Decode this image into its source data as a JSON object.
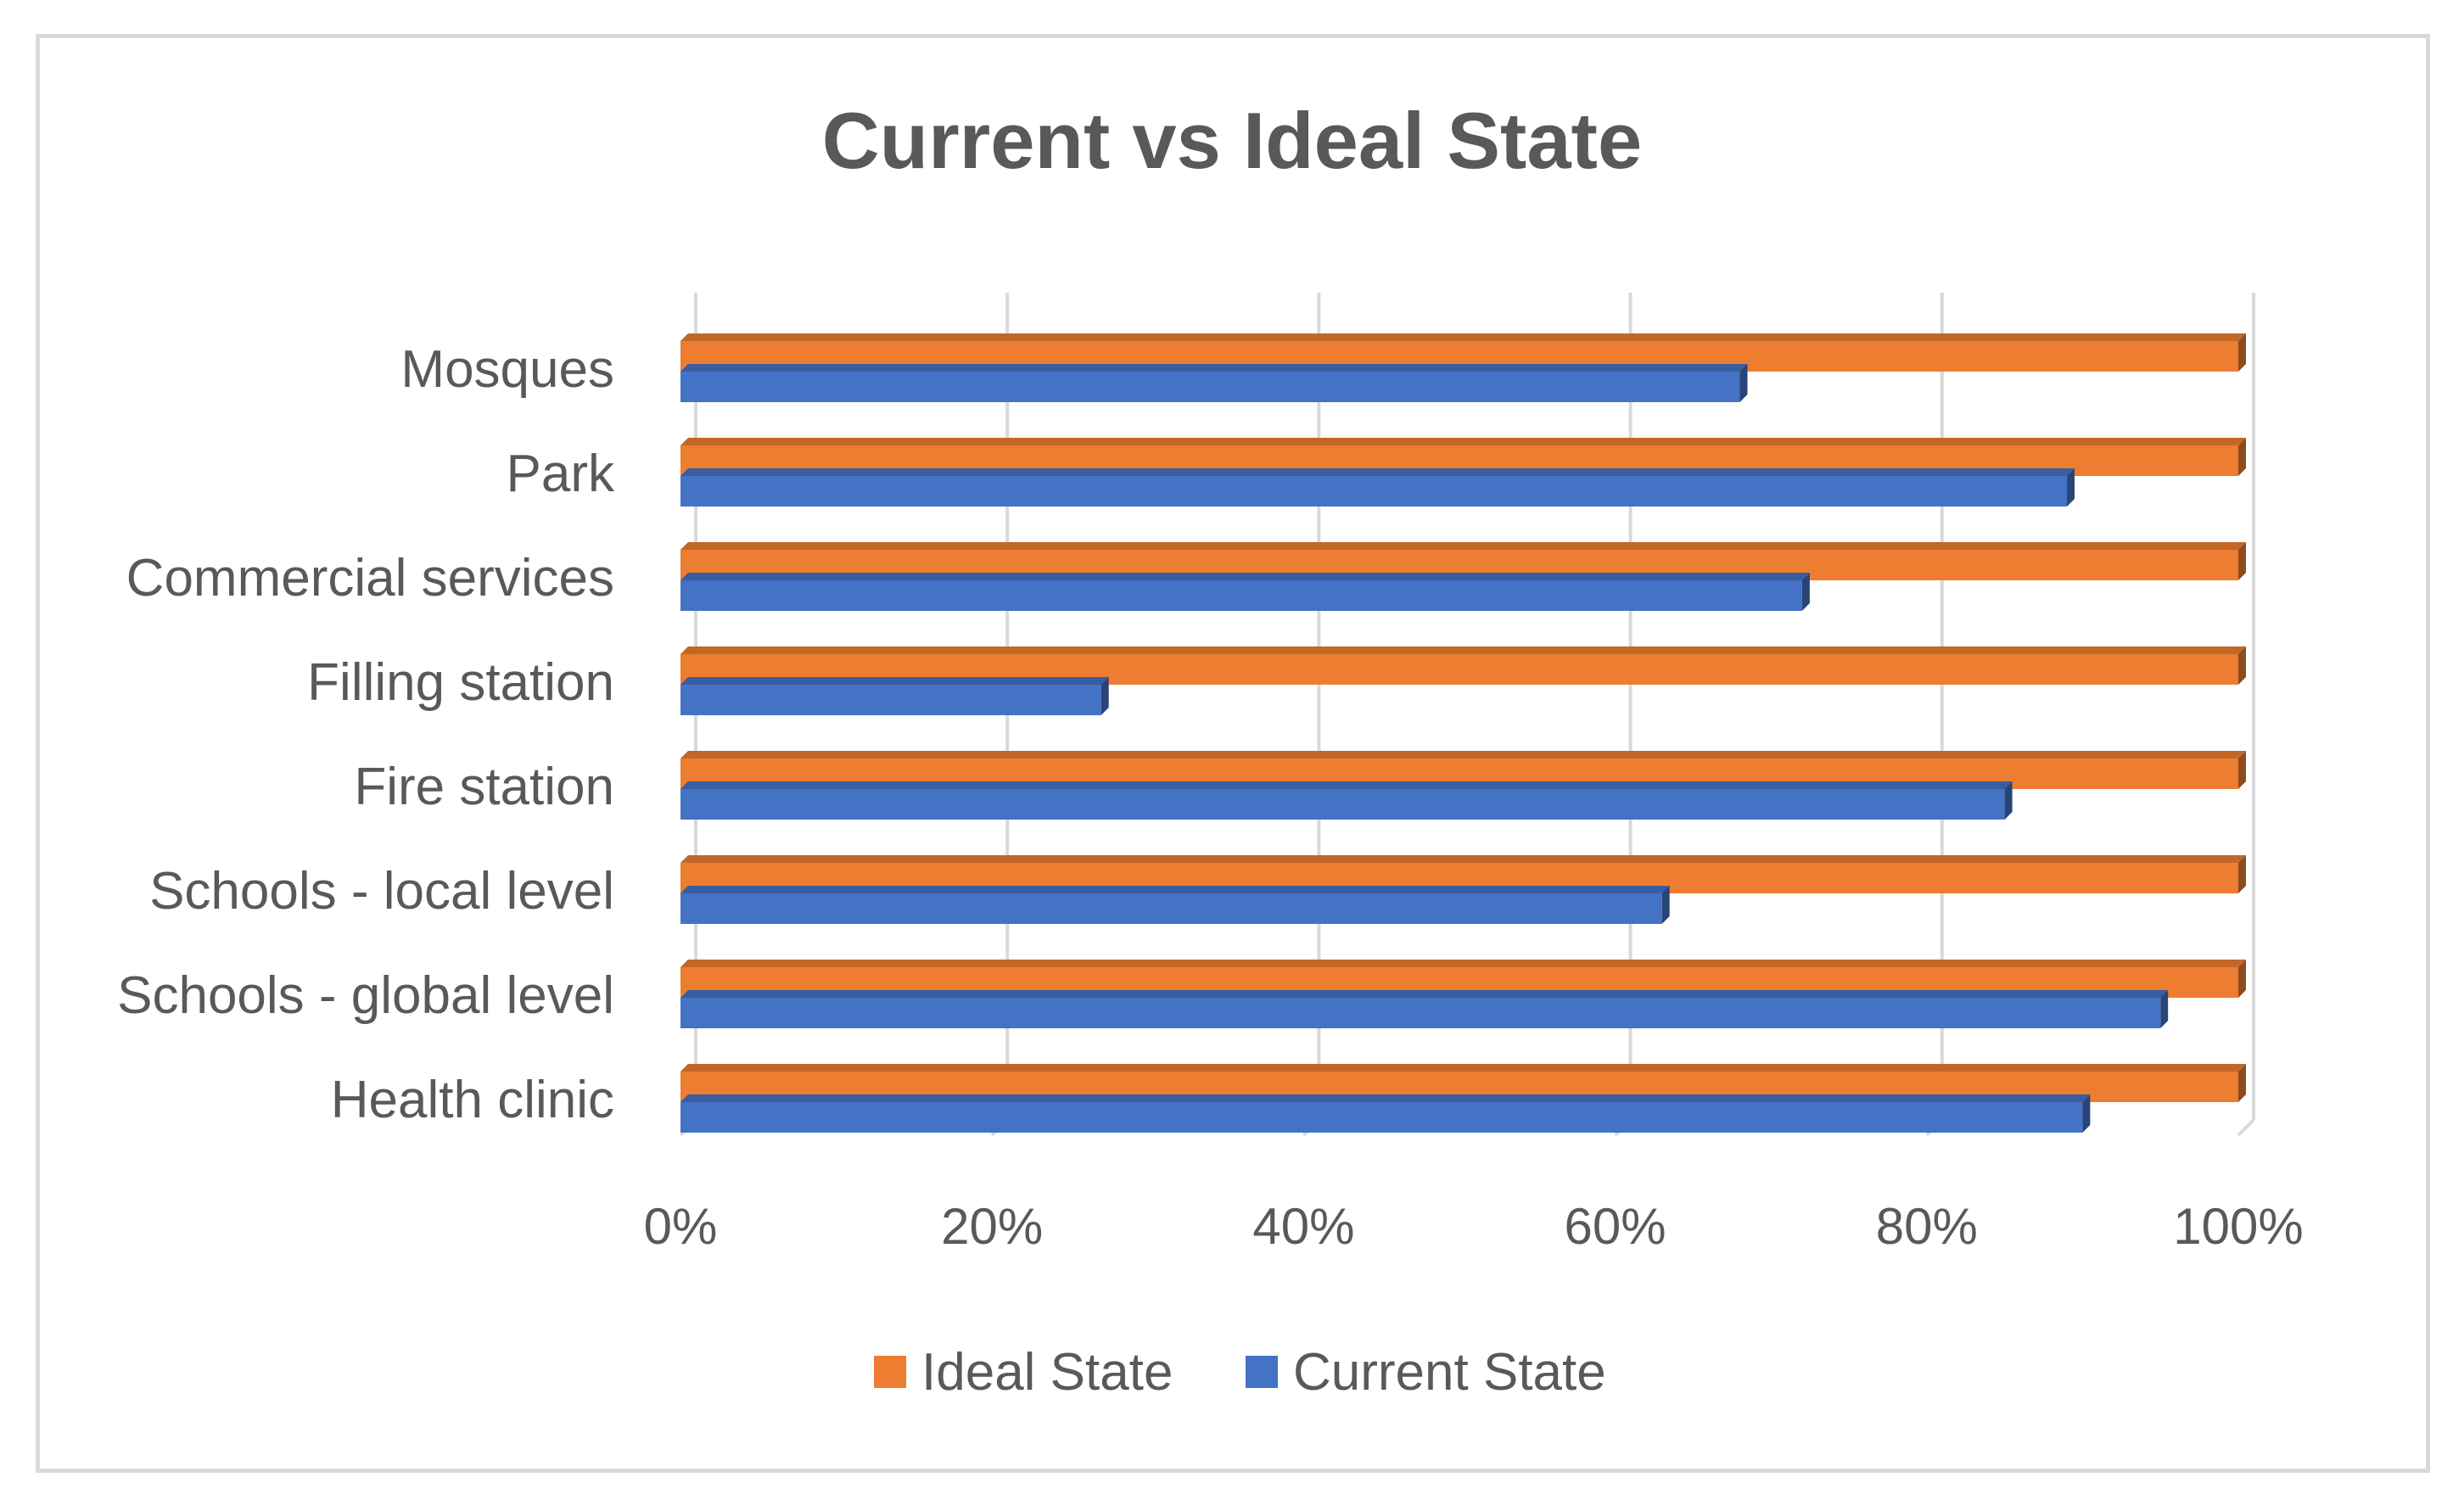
{
  "chart_data": {
    "type": "bar",
    "orientation": "horizontal",
    "style": "3d-clustered",
    "title": "Current vs Ideal State",
    "categories": [
      "Mosques",
      "Park",
      "Commercial services",
      "Filling station",
      "Fire station",
      "Schools - local level",
      "Schools - global level",
      "Health clinic"
    ],
    "series": [
      {
        "name": "Ideal State",
        "color": "#ED7D31",
        "values": [
          100,
          100,
          100,
          100,
          100,
          100,
          100,
          100
        ]
      },
      {
        "name": "Current State",
        "color": "#4472C4",
        "values": [
          68,
          89,
          72,
          27,
          85,
          63,
          95,
          90
        ]
      }
    ],
    "xlim": [
      0,
      100
    ],
    "xticks": [
      "0%",
      "20%",
      "40%",
      "60%",
      "80%",
      "100%"
    ],
    "grid": true,
    "legend_position": "bottom"
  }
}
